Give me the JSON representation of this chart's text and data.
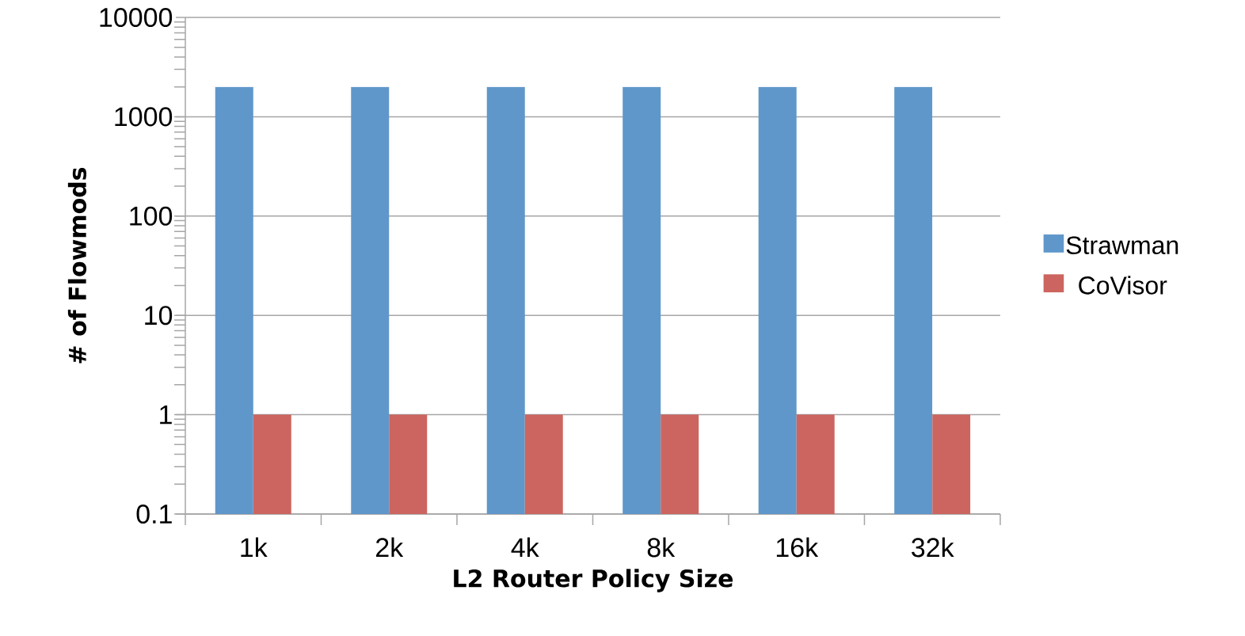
{
  "chart_data": {
    "type": "bar",
    "xlabel": "L2 Router Policy Size",
    "ylabel": "# of Flowmods",
    "categories": [
      "1k",
      "2k",
      "4k",
      "8k",
      "16k",
      "32k"
    ],
    "series": [
      {
        "name": "Strawman",
        "color": "#5f97ca",
        "values": [
          2000,
          2000,
          2000,
          2000,
          2000,
          2000
        ]
      },
      {
        "name": "CoVisor",
        "color": "#cc655f",
        "values": [
          1,
          1,
          1,
          1,
          1,
          1
        ]
      }
    ],
    "log": "y",
    "ylim": [
      0.1,
      10000
    ],
    "yticks": [
      0.1,
      1,
      10,
      100,
      1000,
      10000
    ],
    "grid": "y",
    "legend": "right"
  }
}
